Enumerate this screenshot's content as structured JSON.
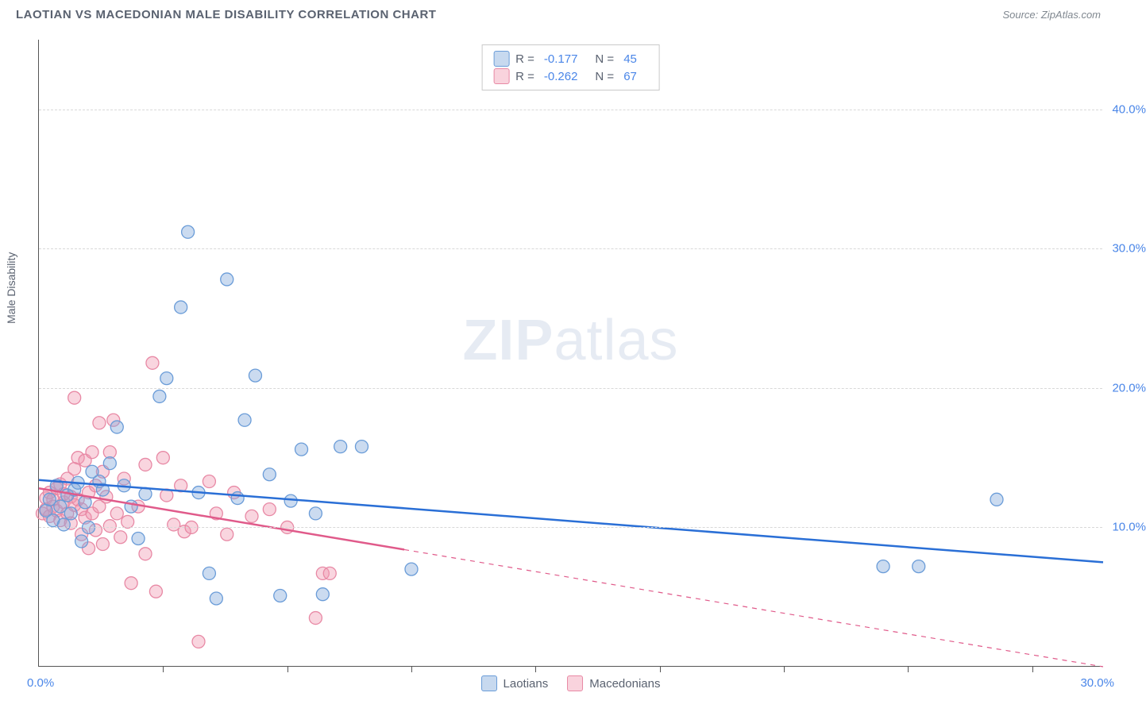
{
  "header": {
    "title": "LAOTIAN VS MACEDONIAN MALE DISABILITY CORRELATION CHART",
    "source": "Source: ZipAtlas.com"
  },
  "chart": {
    "type": "scatter",
    "y_axis_label": "Male Disability",
    "watermark_bold": "ZIP",
    "watermark_light": "atlas",
    "x_min": 0,
    "x_max": 30,
    "y_min": 0,
    "y_max": 45,
    "x_tick_positions": [
      3.5,
      7.0,
      10.5,
      14.0,
      17.5,
      21.0,
      24.5,
      28.0
    ],
    "x_labels": {
      "min": "0.0%",
      "max": "30.0%"
    },
    "y_gridlines": [
      {
        "value": 10,
        "label": "10.0%"
      },
      {
        "value": 20,
        "label": "20.0%"
      },
      {
        "value": 30,
        "label": "30.0%"
      },
      {
        "value": 40,
        "label": "40.0%"
      }
    ],
    "background_color": "#ffffff",
    "grid_color": "#d8d8d8",
    "axis_color": "#555555"
  },
  "legend_stats": {
    "rows": [
      {
        "swatch_fill": "rgba(130,170,220,0.45)",
        "swatch_border": "#6a9cd8",
        "r_label": "R =",
        "r_value": "-0.177",
        "n_label": "N =",
        "n_value": "45"
      },
      {
        "swatch_fill": "rgba(240,150,175,0.42)",
        "swatch_border": "#e889a5",
        "r_label": "R =",
        "r_value": "-0.262",
        "n_label": "N =",
        "n_value": "67"
      }
    ]
  },
  "bottom_legend": {
    "items": [
      {
        "swatch_fill": "rgba(130,170,220,0.45)",
        "swatch_border": "#6a9cd8",
        "label": "Laotians"
      },
      {
        "swatch_fill": "rgba(240,150,175,0.42)",
        "swatch_border": "#e889a5",
        "label": "Macedonians"
      }
    ]
  },
  "series": {
    "laotians": {
      "marker_fill": "rgba(130,170,220,0.42)",
      "marker_stroke": "#6a9cd8",
      "marker_radius": 8,
      "line_color": "#2a6fd6",
      "line_width": 2.5,
      "regression": {
        "x1": 0,
        "y1": 13.4,
        "x2": 30,
        "y2": 7.5,
        "solid_until_x": 30
      },
      "points": [
        [
          0.2,
          11.2
        ],
        [
          0.3,
          12.0
        ],
        [
          0.4,
          10.5
        ],
        [
          0.5,
          13.0
        ],
        [
          0.6,
          11.5
        ],
        [
          0.7,
          10.2
        ],
        [
          0.8,
          12.3
        ],
        [
          0.9,
          11.0
        ],
        [
          1.0,
          12.7
        ],
        [
          1.1,
          13.2
        ],
        [
          1.2,
          9.0
        ],
        [
          1.3,
          11.8
        ],
        [
          1.4,
          10.0
        ],
        [
          1.5,
          14.0
        ],
        [
          1.7,
          13.3
        ],
        [
          1.8,
          12.7
        ],
        [
          2.0,
          14.6
        ],
        [
          2.2,
          17.2
        ],
        [
          2.4,
          13.0
        ],
        [
          2.6,
          11.5
        ],
        [
          2.8,
          9.2
        ],
        [
          3.0,
          12.4
        ],
        [
          3.4,
          19.4
        ],
        [
          3.6,
          20.7
        ],
        [
          4.0,
          25.8
        ],
        [
          4.2,
          31.2
        ],
        [
          4.5,
          12.5
        ],
        [
          4.8,
          6.7
        ],
        [
          5.0,
          4.9
        ],
        [
          5.3,
          27.8
        ],
        [
          5.6,
          12.1
        ],
        [
          5.8,
          17.7
        ],
        [
          6.1,
          20.9
        ],
        [
          6.5,
          13.8
        ],
        [
          6.8,
          5.1
        ],
        [
          7.1,
          11.9
        ],
        [
          7.4,
          15.6
        ],
        [
          7.8,
          11.0
        ],
        [
          8.0,
          5.2
        ],
        [
          8.5,
          15.8
        ],
        [
          9.1,
          15.8
        ],
        [
          10.5,
          7.0
        ],
        [
          23.8,
          7.2
        ],
        [
          24.8,
          7.2
        ],
        [
          27.0,
          12.0
        ]
      ]
    },
    "macedonians": {
      "marker_fill": "rgba(240,150,175,0.40)",
      "marker_stroke": "#e889a5",
      "marker_radius": 8,
      "line_color": "#e05a8a",
      "line_width": 2.5,
      "regression": {
        "x1": 0,
        "y1": 12.8,
        "x2": 30,
        "y2": 0.0,
        "solid_until_x": 10.3
      },
      "points": [
        [
          0.1,
          11.0
        ],
        [
          0.2,
          12.1
        ],
        [
          0.2,
          11.3
        ],
        [
          0.3,
          12.5
        ],
        [
          0.3,
          10.8
        ],
        [
          0.4,
          12.0
        ],
        [
          0.4,
          11.5
        ],
        [
          0.5,
          12.8
        ],
        [
          0.5,
          11.2
        ],
        [
          0.6,
          13.1
        ],
        [
          0.6,
          10.5
        ],
        [
          0.7,
          11.8
        ],
        [
          0.7,
          12.4
        ],
        [
          0.8,
          13.5
        ],
        [
          0.8,
          11.0
        ],
        [
          0.9,
          12.2
        ],
        [
          0.9,
          10.3
        ],
        [
          1.0,
          11.6
        ],
        [
          1.0,
          14.2
        ],
        [
          1.1,
          12.0
        ],
        [
          1.1,
          15.0
        ],
        [
          1.2,
          11.3
        ],
        [
          1.2,
          9.5
        ],
        [
          1.3,
          14.8
        ],
        [
          1.3,
          10.7
        ],
        [
          1.4,
          12.5
        ],
        [
          1.4,
          8.5
        ],
        [
          1.5,
          15.4
        ],
        [
          1.5,
          11.0
        ],
        [
          1.6,
          13.0
        ],
        [
          1.6,
          9.8
        ],
        [
          1.7,
          17.5
        ],
        [
          1.7,
          11.5
        ],
        [
          1.8,
          14.0
        ],
        [
          1.8,
          8.8
        ],
        [
          1.9,
          12.2
        ],
        [
          2.0,
          15.4
        ],
        [
          2.0,
          10.1
        ],
        [
          2.1,
          17.7
        ],
        [
          2.2,
          11.0
        ],
        [
          2.3,
          9.3
        ],
        [
          2.4,
          13.5
        ],
        [
          2.5,
          10.4
        ],
        [
          2.6,
          6.0
        ],
        [
          2.8,
          11.5
        ],
        [
          3.0,
          14.5
        ],
        [
          3.0,
          8.1
        ],
        [
          3.2,
          21.8
        ],
        [
          3.3,
          5.4
        ],
        [
          3.5,
          15.0
        ],
        [
          3.6,
          12.3
        ],
        [
          3.8,
          10.2
        ],
        [
          4.0,
          13.0
        ],
        [
          4.1,
          9.7
        ],
        [
          4.3,
          10.0
        ],
        [
          4.5,
          1.8
        ],
        [
          4.8,
          13.3
        ],
        [
          5.0,
          11.0
        ],
        [
          5.3,
          9.5
        ],
        [
          5.5,
          12.5
        ],
        [
          6.0,
          10.8
        ],
        [
          6.5,
          11.3
        ],
        [
          7.0,
          10.0
        ],
        [
          7.8,
          3.5
        ],
        [
          8.0,
          6.7
        ],
        [
          8.2,
          6.7
        ],
        [
          1.0,
          19.3
        ]
      ]
    }
  }
}
